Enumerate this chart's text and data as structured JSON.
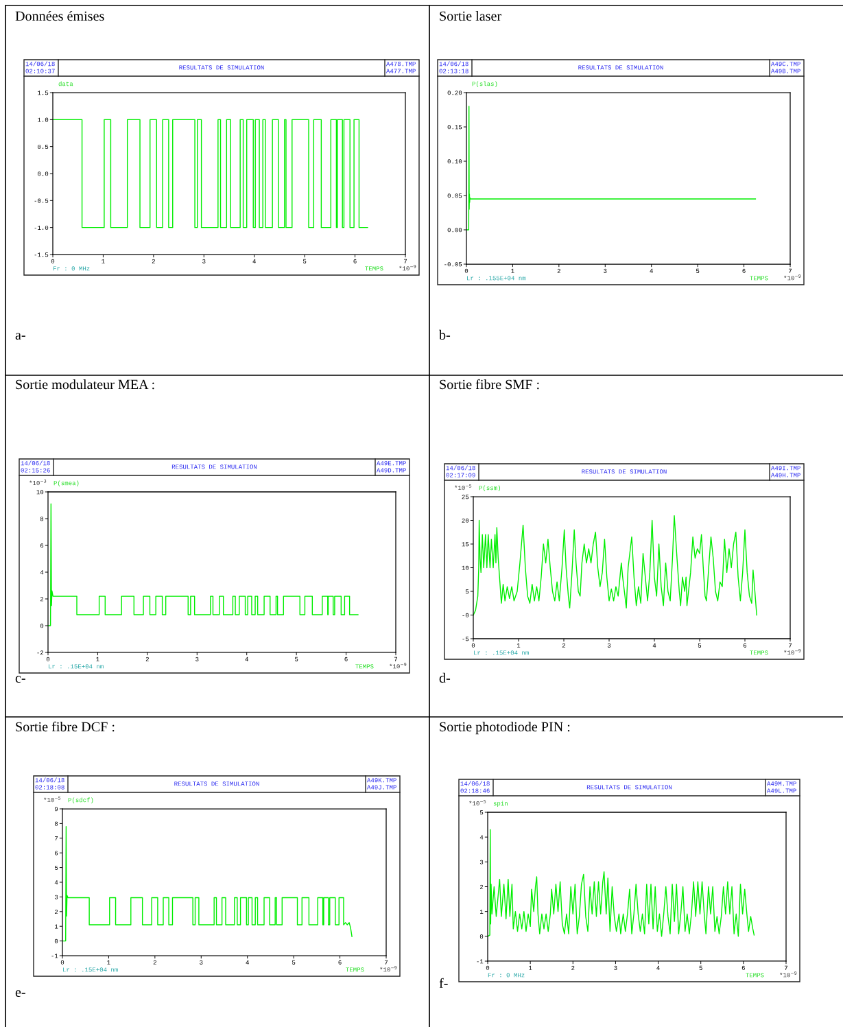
{
  "chart_data": [
    {
      "type": "line",
      "title": "Données émises",
      "subtitle": "RESULTATS DE SIMULATION",
      "ylabel": "data",
      "xlabel": "TEMPS",
      "annotations": [
        "14/06/18",
        "02:10:37",
        "A478.TMP",
        "A477.TMP",
        "Fr : 0 MHz",
        "*10$^{−9}$",
        "a-"
      ],
      "xlim": [
        0,
        7
      ],
      "xticks": [
        0,
        1,
        2,
        3,
        4,
        5,
        6,
        7
      ],
      "ylim": [
        -1.5,
        1.5
      ],
      "yticks": [
        {
          "value": -1.5,
          "label": "-1.5"
        },
        {
          "value": -1.0,
          "label": "-1.0"
        },
        {
          "value": -0.5,
          "label": "-0.5"
        },
        {
          "value": 0,
          "label": "0.0"
        },
        {
          "value": 0.5,
          "label": "0.5"
        },
        {
          "value": 1.0,
          "label": "1.0"
        },
        {
          "value": 1.5,
          "label": "1.5"
        }
      ],
      "series": [
        {
          "color": "#00ee00",
          "x": [
            0,
            0.58,
            0.58,
            1.02,
            1.02,
            1.15,
            1.15,
            1.48,
            1.48,
            1.73,
            1.73,
            1.93,
            1.93,
            2.06,
            2.06,
            2.18,
            2.18,
            2.3,
            2.3,
            2.38,
            2.38,
            2.82,
            2.82,
            2.87,
            2.87,
            2.95,
            2.95,
            3.28,
            3.28,
            3.33,
            3.33,
            3.45,
            3.45,
            3.53,
            3.53,
            3.72,
            3.72,
            3.78,
            3.78,
            3.85,
            3.85,
            3.98,
            3.98,
            4.02,
            4.02,
            4.1,
            4.1,
            4.17,
            4.17,
            4.22,
            4.22,
            4.36,
            4.36,
            4.48,
            4.48,
            4.6,
            4.6,
            4.63,
            4.63,
            4.75,
            4.75,
            5.08,
            5.08,
            5.18,
            5.18,
            5.33,
            5.33,
            5.52,
            5.52,
            5.63,
            5.63,
            5.65,
            5.65,
            5.75,
            5.75,
            5.78,
            5.78,
            5.9,
            5.9,
            5.98,
            5.98,
            6.08,
            6.08,
            6.25
          ],
          "values": [
            1,
            1,
            -1,
            -1,
            1,
            1,
            -1,
            -1,
            1,
            1,
            -1,
            -1,
            1,
            1,
            -1,
            -1,
            1,
            1,
            -1,
            -1,
            1,
            1,
            -1,
            -1,
            1,
            1,
            -1,
            -1,
            1,
            1,
            -1,
            -1,
            1,
            1,
            -1,
            -1,
            1,
            1,
            -1,
            -1,
            1,
            1,
            -1,
            -1,
            1,
            1,
            -1,
            -1,
            1,
            1,
            -1,
            -1,
            1,
            1,
            -1,
            -1,
            1,
            1,
            -1,
            -1,
            1,
            1,
            -1,
            -1,
            1,
            1,
            -1,
            -1,
            1,
            1,
            -1,
            -1,
            1,
            1,
            -1,
            -1,
            1,
            1,
            -1,
            -1,
            1,
            1,
            -1,
            -1
          ]
        }
      ]
    },
    {
      "type": "line",
      "title": "Sortie laser",
      "subtitle": "RESULTATS DE SIMULATION",
      "ylabel": "P(slas)",
      "xlabel": "TEMPS",
      "annotations": [
        "14/06/18",
        "02:13:18",
        "A49C.TMP",
        "A49B.TMP",
        "Lr : .155E+04 nm",
        "*10$^{−9}$",
        "b-"
      ],
      "xlim": [
        0,
        7
      ],
      "xticks": [
        0,
        1,
        2,
        3,
        4,
        5,
        6,
        7
      ],
      "ylim": [
        -0.05,
        0.2
      ],
      "yticks": [
        {
          "value": -0.05,
          "label": "-0.05"
        },
        {
          "value": 0,
          "label": "0.00"
        },
        {
          "value": 0.05,
          "label": "0.05"
        },
        {
          "value": 0.1,
          "label": "0.10"
        },
        {
          "value": 0.15,
          "label": "0.15"
        },
        {
          "value": 0.2,
          "label": "0.20"
        }
      ],
      "series": [
        {
          "color": "#00ee00",
          "x": [
            0,
            0.05,
            0.055,
            0.06,
            0.065,
            0.07,
            0.075,
            0.08,
            0.1,
            6.25
          ],
          "values": [
            0,
            0,
            0.18,
            0.03,
            0.052,
            0.04,
            0.047,
            0.045,
            0.045,
            0.045
          ]
        }
      ]
    },
    {
      "type": "line",
      "title": "Sortie modulateur MEA :",
      "subtitle": "RESULTATS DE SIMULATION",
      "ylabel": "P(smea)",
      "xlabel": "TEMPS",
      "annotations": [
        "14/06/18",
        "02:15:26",
        "A49E.TMP",
        "A49D.TMP",
        "Lr : .15E+04 nm",
        "*10$^{−9}$",
        "c-",
        "*10$^{−3}$"
      ],
      "xlim": [
        0,
        7
      ],
      "xticks": [
        0,
        1,
        2,
        3,
        4,
        5,
        6,
        7
      ],
      "ylim": [
        -2,
        10
      ],
      "yticks": [
        -2,
        0,
        2,
        4,
        6,
        8,
        10
      ],
      "series": [
        {
          "color": "#00ee00",
          "x": [
            0,
            0.05,
            0.06,
            0.07,
            0.08,
            0.1,
            0.58,
            0.58,
            1.03,
            1.03,
            1.15,
            1.15,
            1.48,
            1.48,
            1.73,
            1.73,
            1.92,
            1.92,
            2.05,
            2.05,
            2.17,
            2.17,
            2.3,
            2.3,
            2.37,
            2.37,
            2.82,
            2.82,
            2.87,
            2.87,
            2.95,
            2.95,
            3.27,
            3.27,
            3.32,
            3.32,
            3.45,
            3.45,
            3.53,
            3.53,
            3.72,
            3.72,
            3.77,
            3.77,
            3.85,
            3.85,
            3.97,
            3.97,
            4.02,
            4.02,
            4.1,
            4.1,
            4.17,
            4.17,
            4.22,
            4.22,
            4.35,
            4.35,
            4.47,
            4.47,
            4.59,
            4.59,
            4.62,
            4.62,
            4.74,
            4.74,
            5.07,
            5.07,
            5.17,
            5.17,
            5.32,
            5.32,
            5.52,
            5.52,
            5.63,
            5.63,
            5.64,
            5.64,
            5.74,
            5.74,
            5.77,
            5.77,
            5.9,
            5.9,
            5.97,
            5.97,
            6.07,
            6.07,
            6.24
          ],
          "values": [
            0,
            0,
            9.1,
            1.5,
            2.6,
            2.2,
            2.2,
            0.82,
            0.82,
            2.2,
            2.2,
            0.82,
            0.82,
            2.2,
            2.2,
            0.82,
            0.82,
            2.2,
            2.2,
            0.82,
            0.82,
            2.2,
            2.2,
            0.82,
            0.82,
            2.2,
            2.2,
            0.82,
            0.82,
            2.2,
            2.2,
            0.82,
            0.82,
            2.2,
            2.2,
            0.82,
            0.82,
            2.2,
            2.2,
            0.82,
            0.82,
            2.2,
            2.2,
            0.82,
            0.82,
            2.2,
            2.2,
            0.82,
            0.82,
            2.2,
            2.2,
            0.82,
            0.82,
            2.2,
            2.2,
            0.82,
            0.82,
            2.2,
            2.2,
            0.82,
            0.82,
            2.2,
            2.2,
            0.82,
            0.82,
            2.2,
            2.2,
            0.82,
            0.82,
            2.2,
            2.2,
            0.82,
            0.82,
            2.2,
            2.2,
            0.82,
            0.82,
            2.2,
            2.2,
            0.82,
            0.82,
            2.2,
            2.2,
            0.82,
            0.82,
            2.2,
            2.2,
            0.82,
            0.82
          ]
        }
      ]
    },
    {
      "type": "line",
      "title": "Sortie fibre SMF :",
      "subtitle": "RESULTATS DE SIMULATION",
      "ylabel": "P(ssm)",
      "xlabel": "TEMPS",
      "annotations": [
        "14/06/18",
        "02:17:09",
        "A49I.TMP",
        "A49H.TMP",
        "Lr : .15E+04 nm",
        "*10$^{−9}$",
        "d-",
        "*10$^{−5}$"
      ],
      "xlim": [
        0,
        7
      ],
      "xticks": [
        0,
        1,
        2,
        3,
        4,
        5,
        6,
        7
      ],
      "ylim": [
        -5,
        25
      ],
      "yticks": [
        -5,
        {
          "value": 0,
          "label": "-0"
        },
        5,
        10,
        15,
        20,
        25
      ],
      "series": [
        {
          "color": "#00ee00",
          "x": [
            0,
            0.05,
            0.1,
            0.12,
            0.13,
            0.15,
            0.17,
            0.2,
            0.23,
            0.27,
            0.3,
            0.33,
            0.37,
            0.4,
            0.44,
            0.48,
            0.5,
            0.52,
            0.55,
            0.58,
            0.62,
            0.66,
            0.7,
            0.75,
            0.8,
            0.85,
            0.9,
            0.97,
            1.03,
            1.1,
            1.15,
            1.2,
            1.25,
            1.3,
            1.35,
            1.4,
            1.45,
            1.5,
            1.55,
            1.6,
            1.65,
            1.7,
            1.75,
            1.8,
            1.85,
            1.9,
            1.96,
            2.01,
            2.05,
            2.1,
            2.13,
            2.18,
            2.23,
            2.27,
            2.32,
            2.36,
            2.4,
            2.45,
            2.5,
            2.55,
            2.6,
            2.65,
            2.7,
            2.75,
            2.8,
            2.85,
            2.9,
            2.95,
            3.0,
            3.05,
            3.1,
            3.15,
            3.2,
            3.27,
            3.3,
            3.35,
            3.38,
            3.42,
            3.5,
            3.55,
            3.6,
            3.65,
            3.7,
            3.75,
            3.8,
            3.85,
            3.9,
            3.95,
            4.0,
            4.05,
            4.1,
            4.15,
            4.2,
            4.25,
            4.3,
            4.35,
            4.4,
            4.44,
            4.5,
            4.55,
            4.58,
            4.62,
            4.67,
            4.7,
            4.72,
            4.8,
            4.85,
            4.9,
            4.95,
            5.0,
            5.04,
            5.08,
            5.12,
            5.15,
            5.2,
            5.25,
            5.3,
            5.35,
            5.4,
            5.45,
            5.5,
            5.55,
            5.6,
            5.65,
            5.7,
            5.75,
            5.8,
            5.85,
            5.9,
            5.95,
            6.0,
            6.05,
            6.1,
            6.15,
            6.18,
            6.22,
            6.26
          ],
          "values": [
            0,
            1,
            4,
            10,
            20,
            12,
            9,
            17,
            10,
            17,
            10,
            17,
            10,
            16,
            10,
            17,
            11,
            18.5,
            12,
            8,
            2.5,
            6.5,
            3,
            6,
            3.5,
            6,
            3,
            5,
            11,
            19,
            10,
            4,
            2.5,
            6.5,
            3,
            6,
            3,
            8,
            15,
            11,
            16,
            10,
            5,
            3,
            7,
            3,
            10,
            18,
            10,
            4,
            1.5,
            9,
            18,
            11,
            5,
            4,
            11,
            15,
            11,
            14,
            11,
            15,
            17.5,
            10,
            6,
            9,
            16,
            8,
            3,
            5.5,
            3,
            6,
            4,
            11,
            8,
            4,
            1.5,
            10,
            16.5,
            8,
            2,
            6,
            2.5,
            13,
            8,
            3,
            9,
            20,
            8,
            4,
            15,
            6,
            2,
            11,
            5,
            3,
            12,
            21,
            12,
            5,
            2,
            8,
            5,
            8,
            2,
            9,
            16.5,
            12,
            14,
            13,
            17,
            10,
            4,
            3,
            10,
            16.5,
            12,
            5,
            3,
            7,
            6,
            16,
            9,
            14,
            10,
            15,
            17.5,
            8,
            3,
            9,
            18,
            9,
            4,
            2.5,
            9.5,
            5,
            0
          ]
        }
      ]
    },
    {
      "type": "line",
      "title": "Sortie fibre DCF :",
      "subtitle": "RESULTATS DE SIMULATION",
      "ylabel": "P(sdcf)",
      "xlabel": "TEMPS",
      "annotations": [
        "14/06/18",
        "02:18:08",
        "A49K.TMP",
        "A49J.TMP",
        "Lr : .15E+04 nm",
        "*10$^{−9}$",
        "e-",
        "*10$^{−5}$"
      ],
      "xlim": [
        0,
        7
      ],
      "xticks": [
        0,
        1,
        2,
        3,
        4,
        5,
        6,
        7
      ],
      "ylim": [
        -1,
        9
      ],
      "yticks": [
        -1,
        0,
        1,
        2,
        3,
        4,
        5,
        6,
        7,
        8,
        9
      ],
      "series": [
        {
          "color": "#00ee00",
          "x": [
            0,
            0.07,
            0.08,
            0.09,
            0.1,
            0.12,
            0.58,
            0.58,
            1.02,
            1.02,
            1.15,
            1.15,
            1.48,
            1.48,
            1.73,
            1.73,
            1.93,
            1.93,
            2.06,
            2.06,
            2.18,
            2.18,
            2.3,
            2.3,
            2.38,
            2.38,
            2.82,
            2.82,
            2.87,
            2.87,
            2.95,
            2.95,
            3.28,
            3.28,
            3.33,
            3.33,
            3.45,
            3.45,
            3.53,
            3.53,
            3.72,
            3.72,
            3.78,
            3.78,
            3.85,
            3.85,
            3.98,
            3.98,
            4.02,
            4.02,
            4.1,
            4.1,
            4.17,
            4.17,
            4.22,
            4.22,
            4.36,
            4.36,
            4.48,
            4.48,
            4.6,
            4.6,
            4.63,
            4.63,
            4.75,
            4.75,
            5.08,
            5.08,
            5.18,
            5.18,
            5.33,
            5.33,
            5.52,
            5.52,
            5.63,
            5.63,
            5.65,
            5.65,
            5.75,
            5.75,
            5.78,
            5.78,
            5.9,
            5.9,
            5.98,
            5.98,
            6.08,
            6.08,
            6.12,
            6.16,
            6.2,
            6.23,
            6.26
          ],
          "values": [
            0,
            0,
            7.8,
            1.7,
            3.1,
            2.95,
            2.95,
            1.1,
            1.1,
            2.95,
            2.95,
            1.1,
            1.1,
            2.95,
            2.95,
            1.1,
            1.1,
            2.95,
            2.95,
            1.1,
            1.1,
            2.95,
            2.95,
            1.1,
            1.1,
            2.95,
            2.95,
            1.1,
            1.1,
            2.95,
            2.95,
            1.1,
            1.1,
            2.95,
            2.95,
            1.1,
            1.1,
            2.95,
            2.95,
            1.1,
            1.1,
            2.95,
            2.95,
            1.1,
            1.1,
            2.95,
            2.95,
            1.1,
            1.1,
            2.95,
            2.95,
            1.1,
            1.1,
            2.95,
            2.95,
            1.1,
            1.1,
            2.95,
            2.95,
            1.1,
            1.1,
            2.95,
            2.95,
            1.1,
            1.1,
            2.95,
            2.95,
            1.1,
            1.1,
            2.95,
            2.95,
            1.1,
            1.1,
            2.95,
            2.95,
            1.1,
            1.1,
            2.95,
            2.95,
            1.1,
            1.1,
            2.95,
            2.95,
            1.1,
            1.1,
            2.95,
            2.95,
            1.1,
            1.25,
            1.1,
            1.25,
            0.9,
            0.3
          ]
        }
      ]
    },
    {
      "type": "line",
      "title": "Sortie photodiode PIN :",
      "subtitle": "RESULTATS DE SIMULATION",
      "ylabel": "spin",
      "xlabel": "TEMPS",
      "annotations": [
        "14/06/18",
        "02:18:46",
        "A49M.TMP",
        "A49L.TMP",
        "Fr : 0 MHz",
        "*10$^{−9}$",
        "f-",
        "*10$^{−5}$"
      ],
      "xlim": [
        0,
        7
      ],
      "xticks": [
        0,
        1,
        2,
        3,
        4,
        5,
        6,
        7
      ],
      "ylim": [
        -1,
        5
      ],
      "yticks": [
        -1,
        0,
        1,
        2,
        3,
        4,
        5
      ],
      "series": [
        {
          "color": "#00ee00",
          "x": [
            0,
            0.05,
            0.06,
            0.07,
            0.08,
            0.1,
            0.15,
            0.2,
            0.28,
            0.32,
            0.38,
            0.43,
            0.48,
            0.52,
            0.57,
            0.6,
            0.65,
            0.7,
            0.75,
            0.8,
            0.85,
            0.9,
            0.95,
            1.0,
            1.03,
            1.08,
            1.12,
            1.15,
            1.18,
            1.22,
            1.27,
            1.32,
            1.37,
            1.42,
            1.47,
            1.5,
            1.55,
            1.6,
            1.65,
            1.7,
            1.75,
            1.8,
            1.85,
            1.9,
            1.95,
            2.0,
            2.05,
            2.1,
            2.15,
            2.2,
            2.25,
            2.3,
            2.35,
            2.4,
            2.45,
            2.5,
            2.55,
            2.6,
            2.65,
            2.7,
            2.73,
            2.78,
            2.82,
            2.87,
            2.92,
            2.97,
            3.02,
            3.08,
            3.12,
            3.18,
            3.23,
            3.28,
            3.33,
            3.38,
            3.43,
            3.48,
            3.53,
            3.58,
            3.63,
            3.68,
            3.73,
            3.78,
            3.83,
            3.88,
            3.93,
            3.98,
            4.03,
            4.08,
            4.13,
            4.18,
            4.23,
            4.28,
            4.33,
            4.38,
            4.43,
            4.48,
            4.53,
            4.58,
            4.63,
            4.68,
            4.73,
            4.78,
            4.83,
            4.88,
            4.93,
            4.98,
            5.03,
            5.08,
            5.12,
            5.18,
            5.23,
            5.28,
            5.33,
            5.38,
            5.43,
            5.48,
            5.53,
            5.58,
            5.63,
            5.68,
            5.73,
            5.78,
            5.83,
            5.88,
            5.93,
            5.98,
            6.03,
            6.08,
            6.12,
            6.17,
            6.22,
            6.25
          ],
          "values": [
            0,
            0.05,
            4.3,
            0.5,
            2.1,
            0.9,
            2.0,
            0.8,
            2.3,
            0.8,
            2.1,
            0.7,
            2.3,
            0.8,
            2.1,
            0.3,
            1.0,
            0.2,
            0.9,
            0.3,
            1.0,
            0.2,
            0.9,
            0.4,
            1.9,
            1.0,
            2.0,
            2.4,
            0.9,
            0.1,
            0.9,
            0.3,
            0.9,
            0.2,
            0.9,
            1.9,
            0.9,
            2.1,
            1.0,
            2.2,
            0.5,
            0.1,
            0.9,
            0.1,
            2.0,
            0.9,
            2.1,
            0.1,
            0.8,
            2.1,
            2.5,
            0.8,
            0.2,
            2.0,
            0.9,
            2.2,
            0.8,
            2.2,
            0.9,
            2.2,
            2.6,
            0.9,
            2.35,
            0.2,
            2.0,
            0.8,
            0.2,
            0.9,
            0.1,
            0.9,
            0.2,
            0.9,
            1.9,
            0.1,
            0.9,
            2.1,
            0.9,
            0.2,
            0.9,
            0.1,
            2.1,
            0.5,
            2.1,
            0.3,
            2.0,
            0.2,
            0.9,
            0.0,
            0.9,
            2.0,
            0.8,
            0.1,
            2.1,
            0.6,
            2.1,
            0.1,
            0.9,
            2.0,
            0.2,
            0.9,
            0.1,
            0.9,
            2.2,
            0.8,
            2.2,
            0.9,
            2.2,
            0.9,
            0.1,
            2.0,
            0.9,
            2.0,
            0.2,
            0.8,
            0.1,
            0.8,
            2.0,
            0.9,
            2.2,
            0.9,
            2.0,
            0.1,
            0.9,
            0.0,
            2.1,
            0.9,
            1.9,
            0.9,
            0.2,
            0.8,
            0.3,
            0.05
          ]
        }
      ]
    }
  ]
}
